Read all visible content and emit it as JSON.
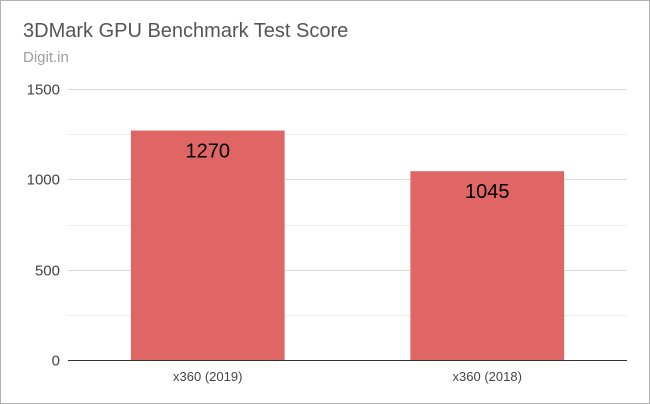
{
  "chart_data": {
    "type": "bar",
    "title": "3DMark GPU Benchmark Test Score",
    "subtitle": "Digit.in",
    "xlabel": "",
    "ylabel": "",
    "categories": [
      "x360 (2019)",
      "x360 (2018)"
    ],
    "values": [
      1270,
      1045
    ],
    "ylim": [
      0,
      1500
    ],
    "yticks": [
      0,
      500,
      1000,
      1500
    ],
    "grid": true,
    "data_labels": true,
    "bar_color": "#e06666",
    "legend": "none"
  }
}
